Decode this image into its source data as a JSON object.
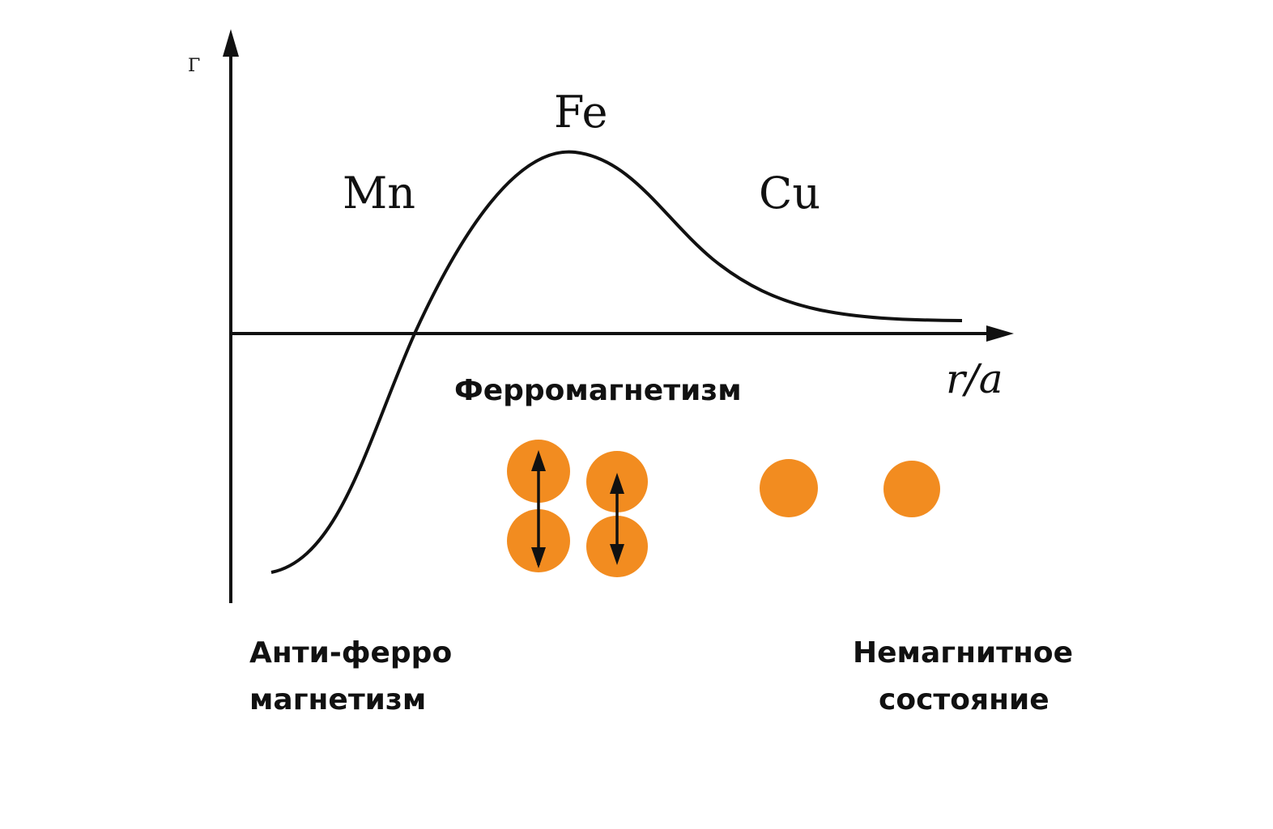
{
  "diagram": {
    "y_axis_label": "Γ",
    "x_axis_label": "r/a",
    "elements": {
      "mn": "Mn",
      "fe": "Fe",
      "cu": "Cu"
    },
    "regions": {
      "ferro": "Ферромагнетизм",
      "antiferro_line1": "Анти-ферро",
      "antiferro_line2": "магнетизм",
      "nonmagnetic_line1": "Немагнитное",
      "nonmagnetic_line2": "состояние"
    },
    "colors": {
      "atom": "#f28c20",
      "line": "#111111"
    }
  }
}
